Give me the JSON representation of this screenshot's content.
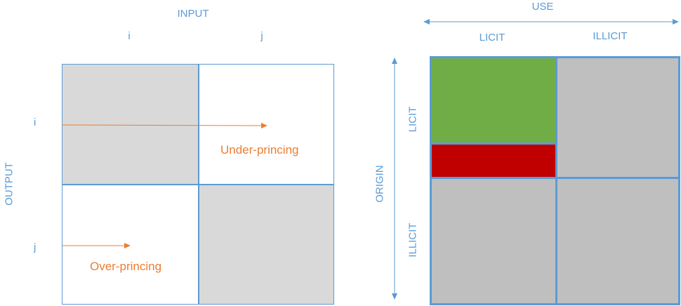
{
  "left_matrix": {
    "input_title": "INPUT",
    "output_title": "OUTPUT",
    "col_i": "i",
    "col_j": "j",
    "row_i": "i",
    "row_j": "j",
    "under_label": "Under-princing",
    "over_label": "Over-princing"
  },
  "right_matrix": {
    "use_title": "USE",
    "origin_title": "ORIGIN",
    "col_licit": "LICIT",
    "col_illicit": "ILLICIT",
    "row_licit": "LICIT",
    "row_illicit": "ILLICIT"
  },
  "colors": {
    "blue_text": "#5b9bd5",
    "border_blue": "#5b9bd5",
    "orange": "#ed7d31",
    "light_gray": "#d9d9d9",
    "dark_gray": "#bfbfbf",
    "green": "#70ad47",
    "red": "#c00000"
  }
}
